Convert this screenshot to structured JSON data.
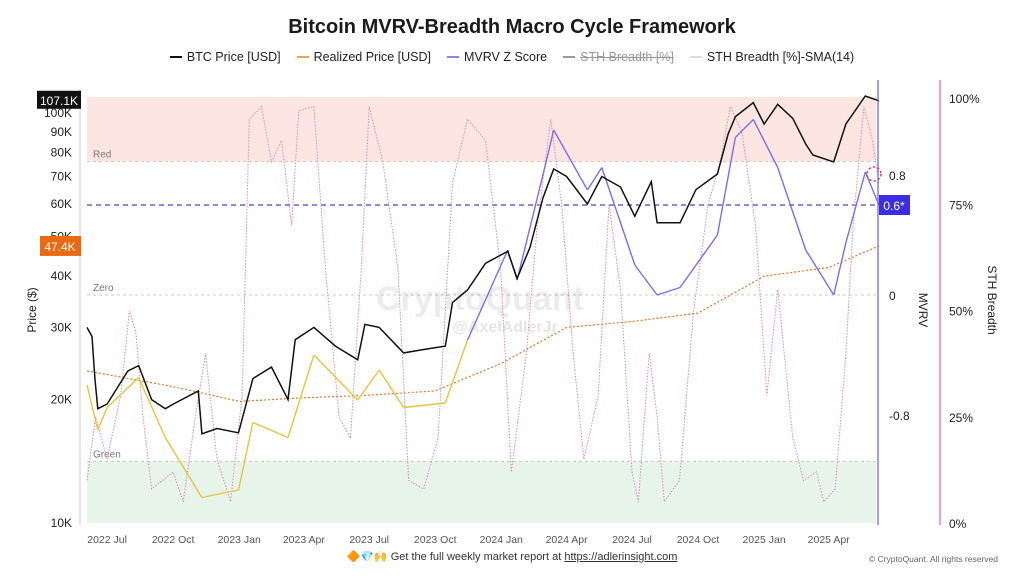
{
  "chart_data": {
    "type": "line",
    "title": "Bitcoin MVRV-Breadth Macro Cycle Framework",
    "legend": [
      {
        "name": "BTC Price [USD]",
        "color": "#111111",
        "style": "solid",
        "enabled": true
      },
      {
        "name": "Realized Price [USD]",
        "color": "#e07a2a",
        "style": "dashed",
        "enabled": true
      },
      {
        "name": "MVRV Z Score",
        "color": "#7b6ee8",
        "style": "solid",
        "enabled": true
      },
      {
        "name": "STH Breadth [%]",
        "color": "#888888",
        "style": "solid",
        "enabled": false
      },
      {
        "name": "STH Breadth [%]-SMA(14)",
        "color": "#d98bb5",
        "style": "dotted",
        "enabled": true
      }
    ],
    "legend_placement": "top",
    "y_left": {
      "label": "Price ($)",
      "scale": "log",
      "range": [
        10000,
        110000
      ],
      "ticks": [
        "10K",
        "20K",
        "30K",
        "40K",
        "50K",
        "60K",
        "70K",
        "80K",
        "90K",
        "100K"
      ],
      "tick_values": [
        10000,
        20000,
        30000,
        40000,
        50000,
        60000,
        70000,
        80000,
        90000,
        100000
      ]
    },
    "y_mvrv": {
      "label": "MVRV",
      "ticks": [
        "0.8",
        "0",
        "-0.8"
      ],
      "tick_values": [
        0.8,
        0,
        -0.8
      ],
      "color": "#6b5ce7"
    },
    "y_breadth": {
      "label": "STH Breadth",
      "ticks": [
        "100%",
        "75%",
        "50%",
        "25%",
        "0%"
      ],
      "tick_values": [
        100,
        75,
        50,
        25,
        0
      ],
      "color": "#e0609a"
    },
    "x": {
      "range": [
        "2022-06-03",
        "2025-06-10"
      ],
      "ticks": [
        "2022 Jul",
        "2022 Oct",
        "2023 Jan",
        "2023 Apr",
        "2023 Jul",
        "2023 Oct",
        "2024 Jan",
        "2024 Apr",
        "2024 Jul",
        "2024 Oct",
        "2025 Jan",
        "2025 Apr"
      ],
      "tick_dates": [
        "2022-07-01",
        "2022-10-01",
        "2023-01-01",
        "2023-04-01",
        "2023-07-01",
        "2023-10-01",
        "2024-01-01",
        "2024-04-01",
        "2024-07-01",
        "2024-10-01",
        "2025-01-01",
        "2025-04-01"
      ]
    },
    "zones": [
      {
        "label": "Red",
        "mvrv_from": 0.89,
        "color": "#fde6e1"
      },
      {
        "label": "Zero",
        "mvrv": 0
      },
      {
        "label": "Green",
        "mvrv_to": -1.11,
        "color": "#e6f4ea"
      }
    ],
    "current_mvrv_line": 0.6,
    "badges": {
      "btc_price": "107.1K",
      "realized_price": "47.4K",
      "mvrv": "0.6*"
    },
    "grid": false,
    "series": {
      "btc_price": [
        [
          "2022-06-03",
          30000
        ],
        [
          "2022-06-10",
          28500
        ],
        [
          "2022-06-14",
          22500
        ],
        [
          "2022-06-18",
          19000
        ],
        [
          "2022-07-01",
          19500
        ],
        [
          "2022-07-30",
          23500
        ],
        [
          "2022-08-14",
          24200
        ],
        [
          "2022-09-01",
          20000
        ],
        [
          "2022-09-20",
          19000
        ],
        [
          "2022-10-01",
          19500
        ],
        [
          "2022-11-05",
          21000
        ],
        [
          "2022-11-10",
          16500
        ],
        [
          "2022-12-01",
          17000
        ],
        [
          "2022-12-31",
          16600
        ],
        [
          "2023-01-20",
          22500
        ],
        [
          "2023-02-15",
          24000
        ],
        [
          "2023-03-10",
          20000
        ],
        [
          "2023-03-20",
          28000
        ],
        [
          "2023-04-15",
          30000
        ],
        [
          "2023-05-15",
          27000
        ],
        [
          "2023-06-15",
          25000
        ],
        [
          "2023-06-25",
          30500
        ],
        [
          "2023-07-15",
          30000
        ],
        [
          "2023-08-18",
          26000
        ],
        [
          "2023-09-15",
          26500
        ],
        [
          "2023-10-15",
          27000
        ],
        [
          "2023-10-25",
          34500
        ],
        [
          "2023-11-15",
          37000
        ],
        [
          "2023-12-10",
          43000
        ],
        [
          "2024-01-10",
          46000
        ],
        [
          "2024-01-23",
          39500
        ],
        [
          "2024-02-10",
          47000
        ],
        [
          "2024-02-28",
          62000
        ],
        [
          "2024-03-14",
          73000
        ],
        [
          "2024-04-01",
          70000
        ],
        [
          "2024-04-30",
          60000
        ],
        [
          "2024-05-20",
          70000
        ],
        [
          "2024-06-15",
          66000
        ],
        [
          "2024-07-05",
          56000
        ],
        [
          "2024-07-28",
          68000
        ],
        [
          "2024-08-05",
          54000
        ],
        [
          "2024-09-06",
          54000
        ],
        [
          "2024-09-28",
          65000
        ],
        [
          "2024-10-28",
          71000
        ],
        [
          "2024-11-12",
          89000
        ],
        [
          "2024-11-22",
          98000
        ],
        [
          "2024-12-17",
          106000
        ],
        [
          "2025-01-01",
          94000
        ],
        [
          "2025-01-20",
          105000
        ],
        [
          "2025-02-10",
          97000
        ],
        [
          "2025-02-28",
          84000
        ],
        [
          "2025-03-10",
          79000
        ],
        [
          "2025-04-08",
          76000
        ],
        [
          "2025-04-25",
          94000
        ],
        [
          "2025-05-22",
          110000
        ],
        [
          "2025-06-10",
          107100
        ]
      ],
      "realized_price": [
        [
          "2022-06-03",
          23500
        ],
        [
          "2022-08-01",
          22500
        ],
        [
          "2022-10-01",
          21500
        ],
        [
          "2023-01-01",
          19800
        ],
        [
          "2023-04-01",
          20200
        ],
        [
          "2023-07-01",
          20500
        ],
        [
          "2023-10-01",
          21000
        ],
        [
          "2024-01-01",
          24500
        ],
        [
          "2024-04-01",
          30000
        ],
        [
          "2024-07-01",
          31000
        ],
        [
          "2024-10-01",
          32500
        ],
        [
          "2025-01-01",
          40000
        ],
        [
          "2025-04-01",
          42000
        ],
        [
          "2025-06-10",
          47400
        ]
      ],
      "mvrv_z": [
        [
          "2022-06-03",
          -0.6
        ],
        [
          "2022-06-18",
          -0.9
        ],
        [
          "2022-07-01",
          -0.75
        ],
        [
          "2022-08-14",
          -0.55
        ],
        [
          "2022-09-20",
          -0.95
        ],
        [
          "2022-11-10",
          -1.35
        ],
        [
          "2022-12-31",
          -1.3
        ],
        [
          "2023-01-20",
          -0.85
        ],
        [
          "2023-03-10",
          -0.95
        ],
        [
          "2023-04-15",
          -0.4
        ],
        [
          "2023-06-15",
          -0.7
        ],
        [
          "2023-07-15",
          -0.5
        ],
        [
          "2023-08-18",
          -0.75
        ],
        [
          "2023-10-15",
          -0.72
        ],
        [
          "2023-11-15",
          -0.3
        ],
        [
          "2024-01-10",
          0.3
        ],
        [
          "2024-01-23",
          0.1
        ],
        [
          "2024-02-28",
          0.8
        ],
        [
          "2024-03-14",
          1.1
        ],
        [
          "2024-04-30",
          0.7
        ],
        [
          "2024-05-20",
          0.85
        ],
        [
          "2024-07-05",
          0.2
        ],
        [
          "2024-08-05",
          0.0
        ],
        [
          "2024-09-06",
          0.05
        ],
        [
          "2024-10-28",
          0.4
        ],
        [
          "2024-11-22",
          1.05
        ],
        [
          "2024-12-17",
          1.17
        ],
        [
          "2025-01-20",
          0.85
        ],
        [
          "2025-02-28",
          0.3
        ],
        [
          "2025-04-08",
          0.0
        ],
        [
          "2025-04-25",
          0.35
        ],
        [
          "2025-05-22",
          0.82
        ],
        [
          "2025-06-10",
          0.6
        ]
      ],
      "sth_breadth_sma14": [
        [
          "2022-06-03",
          10
        ],
        [
          "2022-06-15",
          25
        ],
        [
          "2022-07-01",
          15
        ],
        [
          "2022-07-20",
          30
        ],
        [
          "2022-08-01",
          50
        ],
        [
          "2022-08-10",
          45
        ],
        [
          "2022-08-20",
          25
        ],
        [
          "2022-09-01",
          8
        ],
        [
          "2022-10-01",
          12
        ],
        [
          "2022-10-15",
          5
        ],
        [
          "2022-11-01",
          25
        ],
        [
          "2022-11-15",
          40
        ],
        [
          "2022-12-01",
          15
        ],
        [
          "2022-12-20",
          5
        ],
        [
          "2023-01-05",
          30
        ],
        [
          "2023-01-15",
          95
        ],
        [
          "2023-02-01",
          98
        ],
        [
          "2023-02-15",
          85
        ],
        [
          "2023-03-01",
          90
        ],
        [
          "2023-03-15",
          70
        ],
        [
          "2023-03-25",
          97
        ],
        [
          "2023-04-15",
          98
        ],
        [
          "2023-05-01",
          60
        ],
        [
          "2023-05-20",
          25
        ],
        [
          "2023-06-05",
          20
        ],
        [
          "2023-06-20",
          60
        ],
        [
          "2023-07-01",
          98
        ],
        [
          "2023-07-20",
          85
        ],
        [
          "2023-08-10",
          60
        ],
        [
          "2023-08-25",
          10
        ],
        [
          "2023-09-15",
          8
        ],
        [
          "2023-10-05",
          20
        ],
        [
          "2023-10-25",
          80
        ],
        [
          "2023-11-15",
          95
        ],
        [
          "2023-12-10",
          90
        ],
        [
          "2023-12-31",
          60
        ],
        [
          "2024-01-15",
          12
        ],
        [
          "2024-02-05",
          40
        ],
        [
          "2024-02-20",
          70
        ],
        [
          "2024-03-10",
          95
        ],
        [
          "2024-03-25",
          75
        ],
        [
          "2024-04-10",
          40
        ],
        [
          "2024-04-25",
          15
        ],
        [
          "2024-05-15",
          30
        ],
        [
          "2024-05-30",
          75
        ],
        [
          "2024-06-15",
          55
        ],
        [
          "2024-07-01",
          12
        ],
        [
          "2024-07-10",
          5
        ],
        [
          "2024-07-25",
          40
        ],
        [
          "2024-08-05",
          25
        ],
        [
          "2024-08-15",
          5
        ],
        [
          "2024-09-05",
          10
        ],
        [
          "2024-09-25",
          50
        ],
        [
          "2024-10-15",
          75
        ],
        [
          "2024-11-01",
          85
        ],
        [
          "2024-11-15",
          98
        ],
        [
          "2024-12-01",
          92
        ],
        [
          "2024-12-20",
          70
        ],
        [
          "2025-01-05",
          30
        ],
        [
          "2025-01-20",
          55
        ],
        [
          "2025-02-10",
          20
        ],
        [
          "2025-02-25",
          10
        ],
        [
          "2025-03-15",
          12
        ],
        [
          "2025-03-25",
          5
        ],
        [
          "2025-04-10",
          8
        ],
        [
          "2025-04-25",
          40
        ],
        [
          "2025-05-05",
          70
        ],
        [
          "2025-05-20",
          98
        ],
        [
          "2025-06-01",
          90
        ],
        [
          "2025-06-10",
          80
        ]
      ]
    }
  },
  "watermark": {
    "brand": "CryptoQuant",
    "handle": "@AxelAdlerJr"
  },
  "footer": {
    "emoji": "🔶💎🙌",
    "text": "Get the full weekly market report at ",
    "link": "https://adlerinsight.com"
  },
  "copyright": "© CryptoQuant. All rights reserved"
}
